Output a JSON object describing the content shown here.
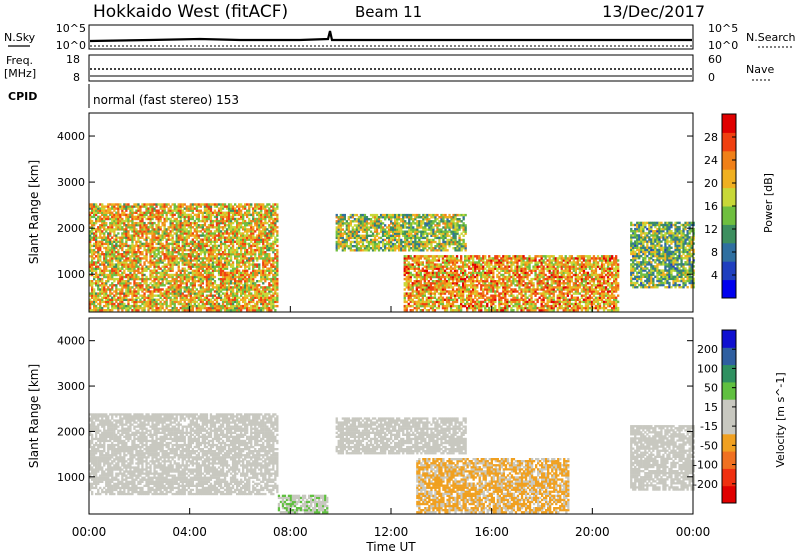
{
  "header": {
    "station": "Hokkaido West (fitACF)",
    "beam": "Beam 11",
    "date": "13/Dec/2017"
  },
  "noise_panel": {
    "left_label": "N.Sky",
    "right_label": "N.Search",
    "tick_top_left": "10^5",
    "tick_bottom_left": "10^0",
    "tick_top_right": "10^5",
    "tick_bottom_right": "10^0"
  },
  "freq_panel": {
    "left_label_line1": "Freq.",
    "left_label_line2": "[MHz]",
    "tick_top_left": "18",
    "tick_bottom_left": "8",
    "right_label": "Nave",
    "tick_top_right": "60",
    "tick_bottom_right": "0"
  },
  "cpid_panel": {
    "label": "CPID",
    "text": "normal (fast stereo) 153"
  },
  "colors": {
    "power": [
      "#0000ee",
      "#1f3fbf",
      "#2f6fa0",
      "#3d8f5f",
      "#6fbf3f",
      "#c8d838",
      "#f0b020",
      "#f08018",
      "#f04010",
      "#e00000"
    ],
    "velocity": [
      "#e00000",
      "#f03010",
      "#f07020",
      "#f0a020",
      "#c8c8c0",
      "#c8c8c0",
      "#60c040",
      "#2f9060",
      "#2f5fa0",
      "#1010d0"
    ]
  },
  "chart_data": [
    {
      "type": "heatmap",
      "quantity": "Power",
      "ylabel": "Slant Range [km]",
      "yticks": [
        "4000",
        "3000",
        "2000",
        "1000"
      ],
      "ylim": [
        180,
        4500
      ],
      "colorbar": {
        "label": "Power [dB]",
        "ticks": [
          "28",
          "24",
          "20",
          "16",
          "12",
          "8",
          "4"
        ],
        "range": [
          0,
          32
        ]
      },
      "regions": [
        {
          "t0": 0.0,
          "t1": 7.5,
          "r0": 200,
          "r1": 2500,
          "level": 20
        },
        {
          "t0": 9.8,
          "t1": 15.0,
          "r0": 1500,
          "r1": 2300,
          "level": 16
        },
        {
          "t0": 12.5,
          "t1": 21.0,
          "r0": 200,
          "r1": 1400,
          "level": 22
        },
        {
          "t0": 21.5,
          "t1": 24.0,
          "r0": 700,
          "r1": 2100,
          "level": 14
        }
      ]
    },
    {
      "type": "heatmap",
      "quantity": "Velocity",
      "ylabel": "Slant Range [km]",
      "xlabel": "Time UT",
      "yticks": [
        "4000",
        "3000",
        "2000",
        "1000"
      ],
      "xticks": [
        "00:00",
        "04:00",
        "08:00",
        "12:00",
        "16:00",
        "20:00",
        "00:00"
      ],
      "xlim": [
        0,
        24
      ],
      "ylim": [
        180,
        4500
      ],
      "colorbar": {
        "label": "Velocity [m s^-1]",
        "ticks": [
          "200",
          "100",
          "50",
          "15",
          "-15",
          "-50",
          "-100",
          "-200"
        ],
        "range": [
          -250,
          250
        ]
      },
      "regions": [
        {
          "t0": 0.0,
          "t1": 7.5,
          "r0": 600,
          "r1": 2400,
          "velocity": 0
        },
        {
          "t0": 7.5,
          "t1": 9.5,
          "r0": 200,
          "r1": 600,
          "velocity": 40
        },
        {
          "t0": 9.8,
          "t1": 15.0,
          "r0": 1500,
          "r1": 2300,
          "velocity": 0
        },
        {
          "t0": 13.0,
          "t1": 19.0,
          "r0": 200,
          "r1": 1400,
          "velocity": -60
        },
        {
          "t0": 21.5,
          "t1": 24.0,
          "r0": 700,
          "r1": 2100,
          "velocity": 0
        }
      ]
    }
  ]
}
